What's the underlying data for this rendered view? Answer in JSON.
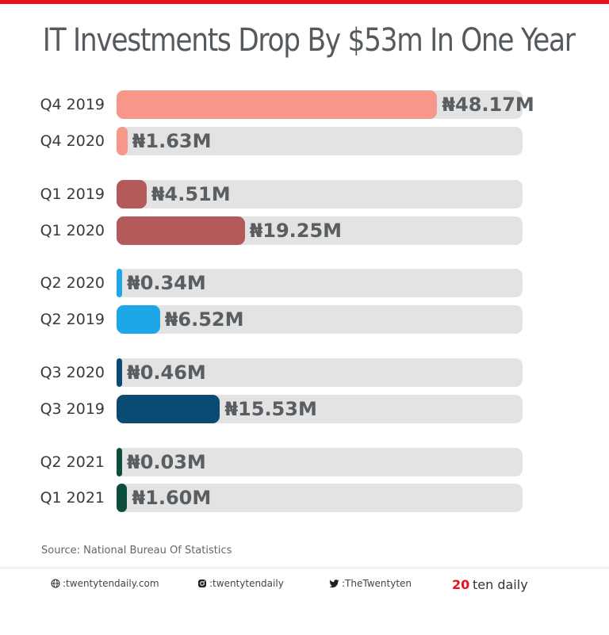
{
  "chart_data": {
    "type": "bar",
    "orientation": "horizontal",
    "title": "IT Investments Drop By $53m In One Year",
    "unit": "₦ millions",
    "xlim": [
      0,
      61
    ],
    "categories": [
      "Q4 2019",
      "Q4 2020",
      "Q1 2019",
      "Q1 2020",
      "Q2 2020",
      "Q2 2019",
      "Q3 2020",
      "Q3 2019",
      "Q2 2021",
      "Q1 2021"
    ],
    "values": [
      48.17,
      1.63,
      4.51,
      19.25,
      0.34,
      6.52,
      0.46,
      15.53,
      0.03,
      1.6
    ],
    "value_labels": [
      "₦48.17M",
      "₦1.63M",
      "₦4.51M",
      "₦19.25M",
      "₦0.34M",
      "₦6.52M",
      "₦0.46M",
      "₦15.53M",
      "₦0.03M",
      "₦1.60M"
    ],
    "colors": [
      "#f7978a",
      "#f7978a",
      "#b45a5a",
      "#b45a5a",
      "#1ea7e8",
      "#1ea7e8",
      "#0a4a73",
      "#0a4a73",
      "#0d4d40",
      "#0d4d40"
    ],
    "source": "Source: National Bureau Of Statistics"
  },
  "footer": {
    "website": ":twentytendaily.com",
    "instagram": ":twentytendaily",
    "twitter": ":TheTwentyten",
    "brand_number": "20",
    "brand_text": "ten daily"
  },
  "colors": {
    "accent": "#e8101e",
    "track": "#e3e3e3"
  }
}
